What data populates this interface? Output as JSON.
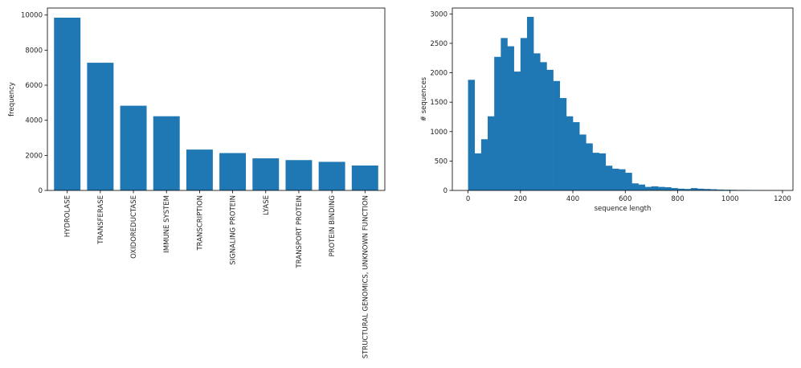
{
  "chart_data": [
    {
      "type": "bar",
      "categories": [
        "HYDROLASE",
        "TRANSFERASE",
        "OXIDOREDUCTASE",
        "IMMUNE SYSTEM",
        "TRANSCRIPTION",
        "SIGNALING PROTEIN",
        "LYASE",
        "TRANSPORT PROTEIN",
        "PROTEIN BINDING",
        "STRUCTURAL GENOMICS, UNKNOWN FUNCTION"
      ],
      "values": [
        9850,
        7280,
        4830,
        4230,
        2330,
        2130,
        1830,
        1730,
        1630,
        1420
      ],
      "xlabel": "",
      "ylabel": "frequency",
      "ylim": [
        0,
        10400
      ],
      "yticks": [
        0,
        2000,
        4000,
        6000,
        8000,
        10000
      ],
      "color": "#1f77b4",
      "grid": false
    },
    {
      "type": "histogram",
      "bin_width": 25,
      "x_start": 0,
      "values": [
        1880,
        630,
        870,
        1260,
        2270,
        2590,
        2450,
        2020,
        2590,
        2950,
        2330,
        2180,
        2050,
        1860,
        1570,
        1260,
        1160,
        950,
        800,
        640,
        630,
        420,
        370,
        360,
        300,
        120,
        100,
        60,
        70,
        60,
        55,
        40,
        30,
        25,
        40,
        30,
        25,
        20,
        15,
        12,
        10,
        8,
        8,
        6,
        6,
        5,
        5,
        4
      ],
      "xlabel": "sequence length",
      "ylabel": "# sequences",
      "xlim": [
        -60,
        1240
      ],
      "ylim": [
        0,
        3100
      ],
      "xticks": [
        0,
        200,
        400,
        600,
        800,
        1000,
        1200
      ],
      "yticks": [
        0,
        500,
        1000,
        1500,
        2000,
        2500,
        3000
      ],
      "color": "#1f77b4",
      "grid": false
    }
  ]
}
